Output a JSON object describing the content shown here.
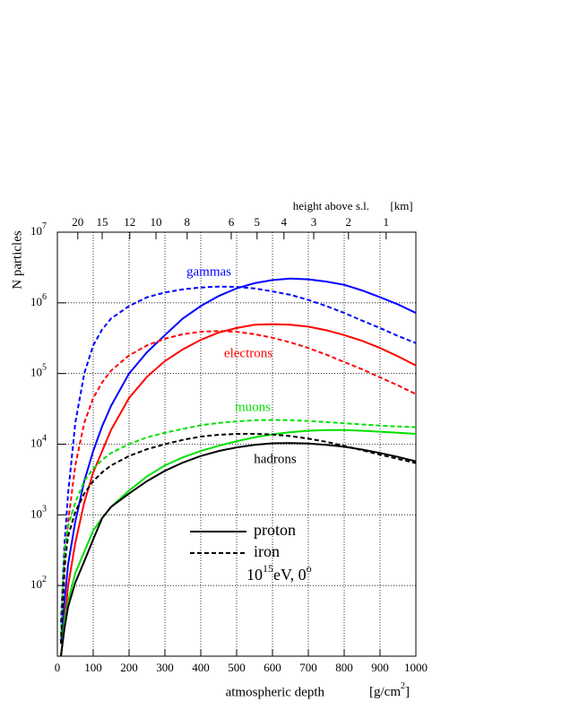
{
  "chart_data": {
    "type": "line",
    "ylabel": "N particles",
    "xlabel": "atmospheric depth",
    "xunit": {
      "text": "[g/cm",
      "exp": "2",
      "close": "]"
    },
    "xlim": [
      0,
      1000
    ],
    "xticks": [
      0,
      100,
      200,
      300,
      400,
      500,
      600,
      700,
      800,
      900,
      1000
    ],
    "ylim": [
      10,
      10000000
    ],
    "log_y": true,
    "grid": true,
    "yticks": [
      {
        "value": 100,
        "label": "10",
        "exp": "2"
      },
      {
        "value": 1000,
        "label": "10",
        "exp": "3"
      },
      {
        "value": 10000,
        "label": "10",
        "exp": "4"
      },
      {
        "value": 100000,
        "label": "10",
        "exp": "5"
      },
      {
        "value": 1000000,
        "label": "10",
        "exp": "6"
      },
      {
        "value": 10000000,
        "label": "10",
        "exp": "7"
      }
    ],
    "top_axis": {
      "label": "height above s.l.",
      "unit": "[km]",
      "ticks": [
        {
          "value": 57,
          "label": "20"
        },
        {
          "value": 125,
          "label": "15"
        },
        {
          "value": 202,
          "label": "12"
        },
        {
          "value": 275,
          "label": "10"
        },
        {
          "value": 362,
          "label": "8"
        },
        {
          "value": 485,
          "label": "6"
        },
        {
          "value": 557,
          "label": "5"
        },
        {
          "value": 632,
          "label": "4"
        },
        {
          "value": 715,
          "label": "3"
        },
        {
          "value": 812,
          "label": "2"
        },
        {
          "value": 917,
          "label": "1"
        }
      ]
    },
    "x": [
      10,
      20,
      30,
      50,
      75,
      100,
      125,
      150,
      200,
      250,
      300,
      350,
      400,
      450,
      500,
      550,
      600,
      650,
      700,
      750,
      800,
      850,
      900,
      950,
      1000
    ],
    "series": [
      {
        "name": "gammas",
        "color": "#0000ff",
        "values": [
          15,
          60,
          200,
          800,
          3000,
          8000,
          18000,
          35000,
          100000,
          200000,
          350000,
          600000,
          900000,
          1250000,
          1600000,
          1900000,
          2100000,
          2200000,
          2150000,
          2000000,
          1800000,
          1500000,
          1200000,
          950000,
          720000
        ],
        "iron_values": [
          30,
          400,
          2000,
          20000,
          100000,
          250000,
          420000,
          600000,
          900000,
          1200000,
          1400000,
          1550000,
          1650000,
          1700000,
          1680000,
          1600000,
          1450000,
          1300000,
          1100000,
          900000,
          720000,
          560000,
          440000,
          340000,
          270000
        ]
      },
      {
        "name": "electrons",
        "color": "#ff0000",
        "values": [
          10,
          30,
          100,
          400,
          1500,
          4000,
          8000,
          16000,
          45000,
          90000,
          150000,
          220000,
          300000,
          380000,
          440000,
          490000,
          500000,
          490000,
          460000,
          410000,
          350000,
          290000,
          230000,
          175000,
          130000
        ],
        "iron_values": [
          15,
          150,
          800,
          5000,
          20000,
          45000,
          75000,
          110000,
          180000,
          250000,
          310000,
          360000,
          390000,
          400000,
          390000,
          360000,
          320000,
          275000,
          230000,
          185000,
          145000,
          115000,
          88000,
          68000,
          51000
        ]
      },
      {
        "name": "muons",
        "color": "#00e000",
        "values": [
          10,
          30,
          60,
          150,
          300,
          600,
          900,
          1300,
          2200,
          3500,
          5000,
          6500,
          8000,
          9500,
          11000,
          12500,
          13800,
          14800,
          15500,
          15800,
          15800,
          15500,
          15000,
          14500,
          14000
        ],
        "iron_values": [
          20,
          300,
          700,
          1500,
          3000,
          4500,
          6000,
          7500,
          10000,
          12500,
          14500,
          16500,
          18500,
          20000,
          21000,
          21800,
          22000,
          21800,
          21300,
          20500,
          19800,
          19000,
          18300,
          17800,
          17400
        ]
      },
      {
        "name": "hadrons",
        "color": "#000000",
        "values": [
          10,
          25,
          50,
          110,
          220,
          450,
          900,
          1300,
          2000,
          3000,
          4200,
          5500,
          6800,
          8000,
          9000,
          9800,
          10300,
          10400,
          10200,
          9800,
          9200,
          8400,
          7500,
          6600,
          5700
        ],
        "iron_values": [
          15,
          200,
          500,
          1100,
          2000,
          3000,
          4000,
          5000,
          6800,
          8500,
          10000,
          11500,
          12800,
          13600,
          14000,
          14000,
          13700,
          13000,
          12000,
          10800,
          9500,
          8200,
          7100,
          6200,
          5400
        ]
      }
    ],
    "legend": [
      {
        "label": "proton",
        "dash": "solid"
      },
      {
        "label": "iron",
        "dash": "dashed"
      }
    ],
    "note": {
      "base": "10",
      "exp": "15",
      "text": "eV, 0",
      "deg": "o"
    }
  }
}
